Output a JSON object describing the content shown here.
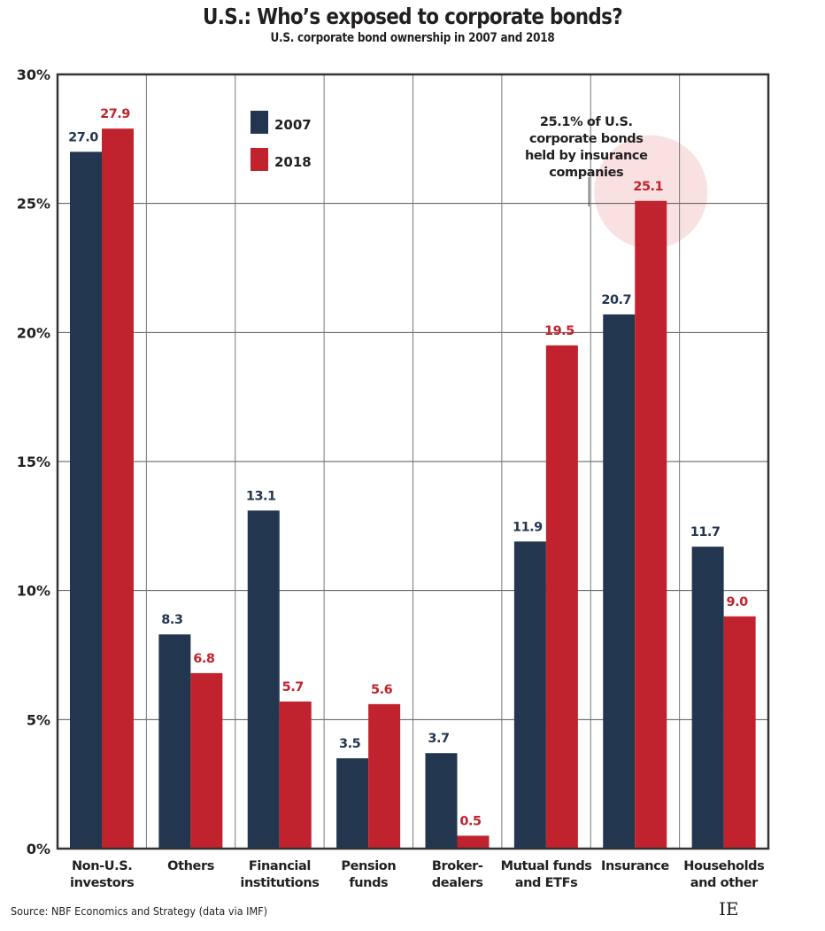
{
  "chart_data": {
    "type": "bar",
    "title": "U.S.: Who’s exposed to corporate bonds?",
    "subtitle": "U.S. corporate bond ownership in 2007 and 2018",
    "xlabel": "",
    "ylabel": "",
    "ylim": [
      0,
      30
    ],
    "yticks": [
      0,
      5,
      10,
      15,
      20,
      25,
      30
    ],
    "ytick_labels": [
      "0%",
      "5%",
      "10%",
      "15%",
      "20%",
      "25%",
      "30%"
    ],
    "grid": true,
    "legend_position": "top-left",
    "categories": [
      [
        "Non-U.S.",
        "investors"
      ],
      [
        "Others"
      ],
      [
        "Financial",
        "institutions"
      ],
      [
        "Pension",
        "funds"
      ],
      [
        "Broker-",
        "dealers"
      ],
      [
        "Mutual funds",
        "and ETFs"
      ],
      [
        "Insurance"
      ],
      [
        "Households",
        "and other"
      ]
    ],
    "series": [
      {
        "name": "2007",
        "color": "#22364f",
        "values": [
          27.0,
          8.3,
          13.1,
          3.5,
          3.7,
          11.9,
          20.7,
          11.7
        ],
        "labels": [
          "27.0",
          "8.3",
          "13.1",
          "3.5",
          "3.7",
          "11.9",
          "20.7",
          "11.7"
        ]
      },
      {
        "name": "2018",
        "color": "#c1232e",
        "values": [
          27.9,
          6.8,
          5.7,
          5.6,
          0.5,
          19.5,
          25.1,
          9.0
        ],
        "labels": [
          "27.9",
          "6.8",
          "5.7",
          "5.6",
          "0.5",
          "19.5",
          "25.1",
          "9.0"
        ]
      }
    ],
    "annotation": {
      "lines": [
        "25.1% of U.S.",
        "corporate bonds",
        "held by insurance",
        "companies"
      ],
      "category_index": 6,
      "series_index": 1,
      "highlight_color": "#f9e1e2"
    }
  },
  "footer": {
    "source": "Source: NBF Economics and Strategy (data via IMF)",
    "logo": "IE"
  }
}
